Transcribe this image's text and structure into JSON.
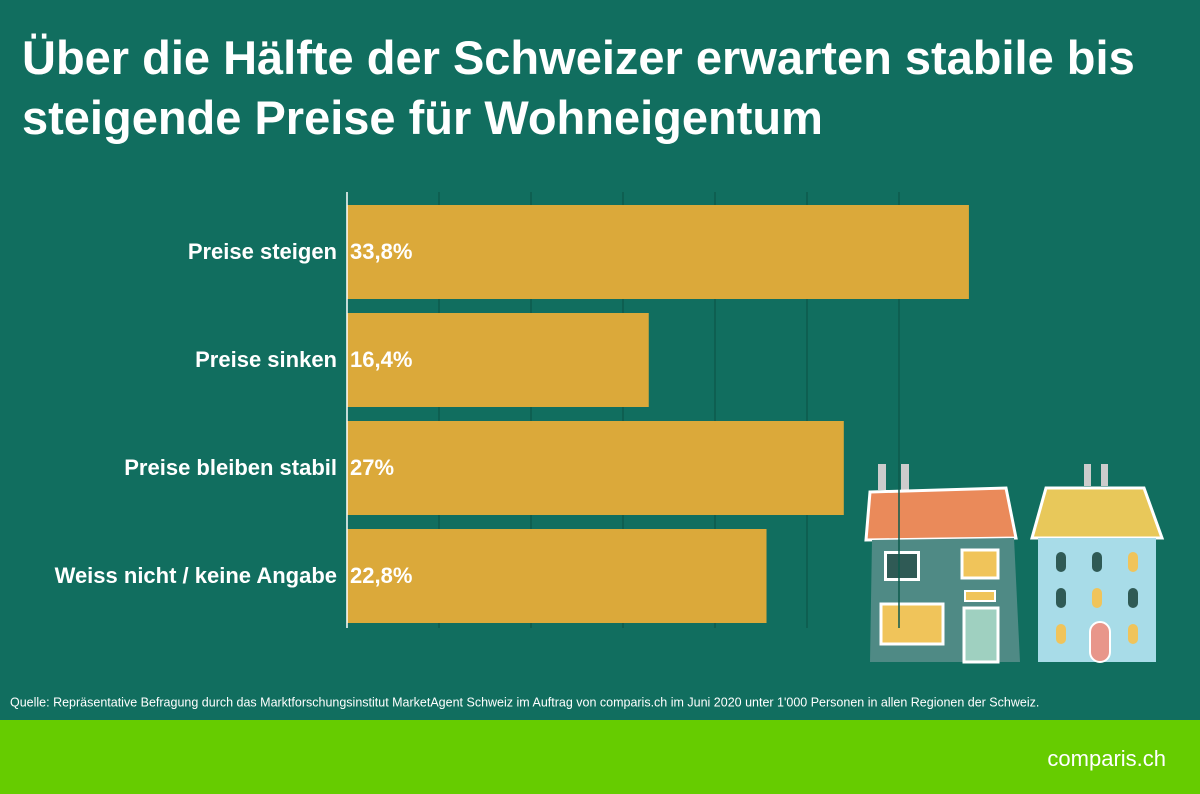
{
  "chart_data": {
    "type": "bar",
    "orientation": "horizontal",
    "title": "Über die Hälfte der Schweizer erwarten stabile bis steigende Preise für Wohneigentum",
    "categories": [
      "Preise steigen",
      "Preise sinken",
      "Preise bleiben stabil",
      "Weiss nicht / keine Angabe"
    ],
    "values": [
      33.8,
      16.4,
      27,
      22.8
    ],
    "value_labels": [
      "33,8%",
      "16,4%",
      "27%",
      "22,8%"
    ],
    "color": "#dba93a",
    "xlim": [
      0,
      35
    ],
    "xticks": [
      0,
      5,
      10,
      15,
      20,
      25,
      30
    ],
    "grid": true,
    "source": "Quelle: Repräsentative Befragung durch das Marktforschungsinstitut MarketAgent Schweiz im Auftrag von comparis.ch im Juni 2020 unter 1'000 Personen in allen Regionen der Schweiz.",
    "brand": "comparis.ch"
  }
}
